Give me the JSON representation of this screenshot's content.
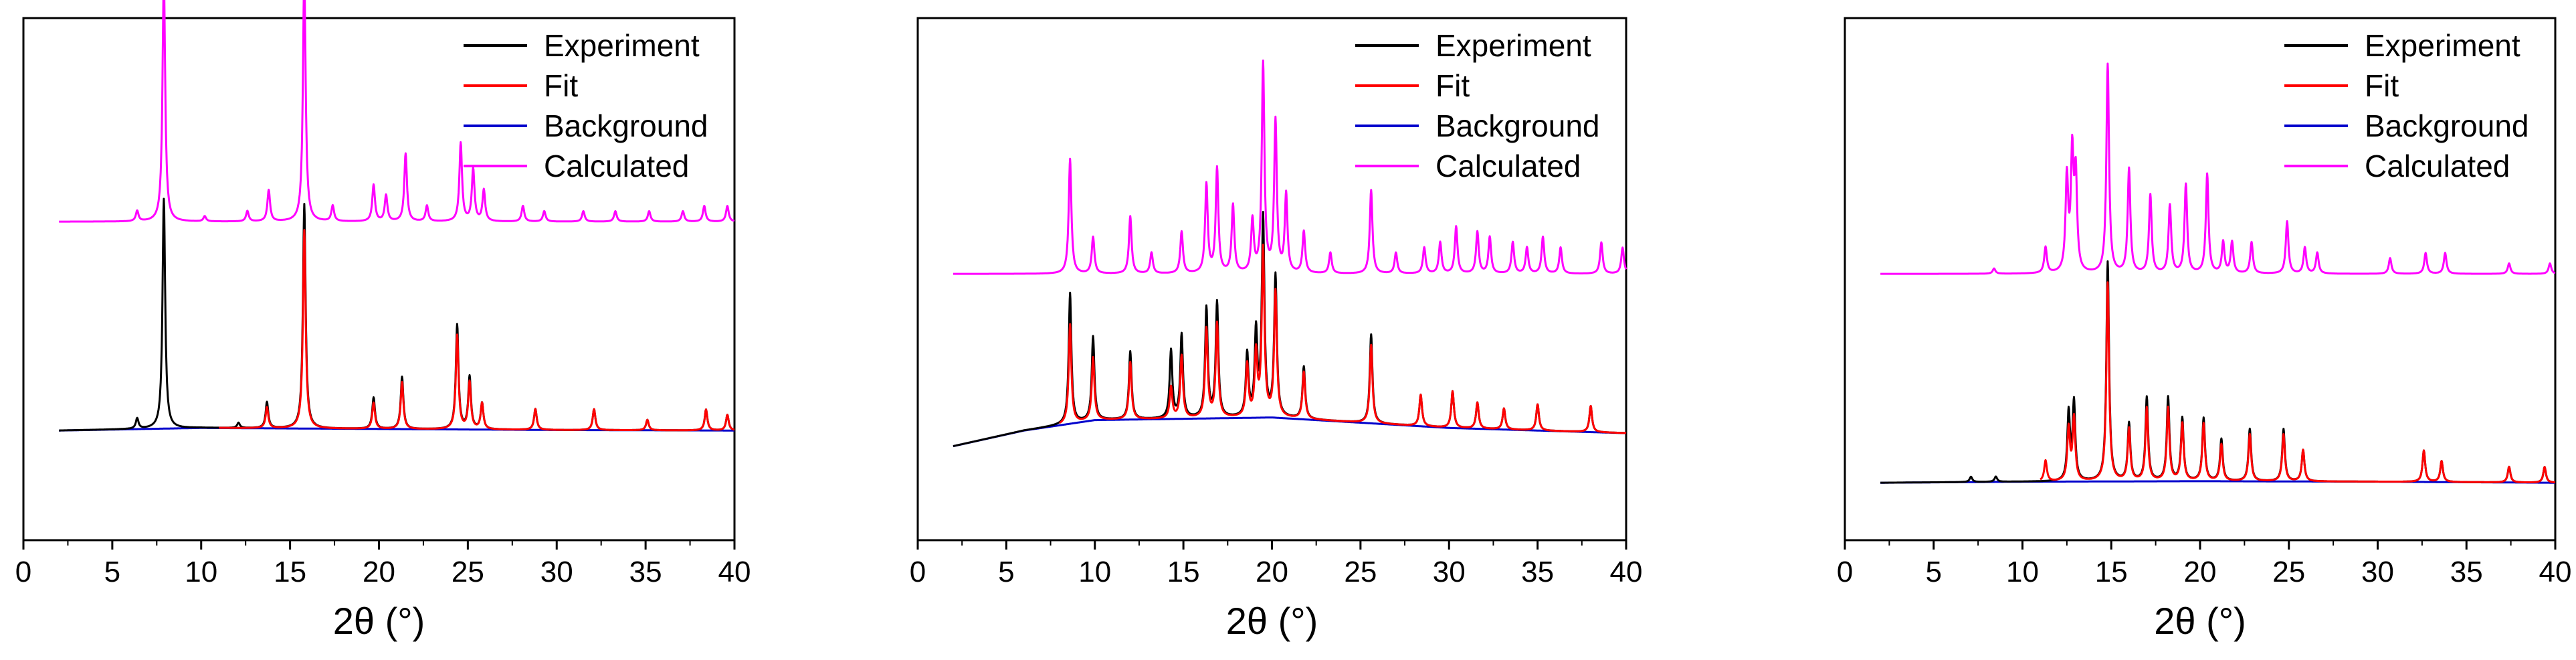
{
  "chart_data": [
    {
      "type": "line",
      "panel": "left",
      "xlabel": "2θ (°)",
      "ylabel": "",
      "xlim": [
        0,
        40
      ],
      "xticks": [
        0,
        5,
        10,
        15,
        20,
        25,
        30,
        35,
        40
      ],
      "yticks": [],
      "ylim": [
        0,
        1.0
      ],
      "legend": {
        "position": "top-right",
        "entries": [
          "Experiment",
          "Fit",
          "Background",
          "Calculated"
        ]
      },
      "series": [
        {
          "name": "Experiment",
          "color": "#000000",
          "baseline": 0.21,
          "x_start": 2.0,
          "bg": [
            [
              2,
              0.0
            ],
            [
              10,
              0.005
            ],
            [
              20,
              0.003
            ],
            [
              30,
              0.001
            ],
            [
              40,
              0.0
            ]
          ],
          "peaks": [
            [
              7.9,
              0.44
            ],
            [
              15.8,
              0.43
            ],
            [
              13.7,
              0.05
            ],
            [
              19.7,
              0.06
            ],
            [
              21.3,
              0.1
            ],
            [
              24.4,
              0.2
            ],
            [
              25.1,
              0.1
            ],
            [
              25.8,
              0.05
            ],
            [
              28.8,
              0.04
            ],
            [
              32.1,
              0.04
            ],
            [
              35.1,
              0.02
            ],
            [
              38.4,
              0.04
            ],
            [
              39.6,
              0.03
            ],
            [
              12.1,
              0.01
            ],
            [
              6.4,
              0.02
            ]
          ]
        },
        {
          "name": "Fit",
          "color": "#ff0000",
          "baseline": 0.21,
          "x_start": 11.0,
          "bg": [
            [
              2,
              0.0
            ],
            [
              10,
              0.005
            ],
            [
              20,
              0.003
            ],
            [
              30,
              0.001
            ],
            [
              40,
              0.0
            ]
          ],
          "peaks": [
            [
              7.9,
              0.39
            ],
            [
              15.8,
              0.38
            ],
            [
              13.7,
              0.04
            ],
            [
              19.7,
              0.05
            ],
            [
              21.3,
              0.09
            ],
            [
              24.4,
              0.18
            ],
            [
              25.1,
              0.09
            ],
            [
              25.8,
              0.05
            ],
            [
              28.8,
              0.04
            ],
            [
              32.1,
              0.04
            ],
            [
              35.1,
              0.02
            ],
            [
              38.4,
              0.04
            ],
            [
              39.6,
              0.03
            ]
          ]
        },
        {
          "name": "Background",
          "color": "#0000cc",
          "baseline": 0.21,
          "x_start": 2.0,
          "bg": [
            [
              2,
              0.0
            ],
            [
              10,
              0.005
            ],
            [
              20,
              0.003
            ],
            [
              30,
              0.001
            ],
            [
              40,
              0.0
            ]
          ],
          "peaks": []
        },
        {
          "name": "Calculated",
          "color": "#ff00ff",
          "baseline": 0.61,
          "x_start": 2.0,
          "bg": [
            [
              2,
              0
            ],
            [
              40,
              0
            ]
          ],
          "peaks": [
            [
              6.4,
              0.02
            ],
            [
              7.9,
              0.47
            ],
            [
              10.2,
              0.01
            ],
            [
              12.6,
              0.02
            ],
            [
              13.8,
              0.06
            ],
            [
              15.8,
              0.48
            ],
            [
              17.4,
              0.03
            ],
            [
              19.7,
              0.07
            ],
            [
              20.4,
              0.05
            ],
            [
              21.5,
              0.13
            ],
            [
              22.7,
              0.03
            ],
            [
              24.6,
              0.15
            ],
            [
              25.3,
              0.1
            ],
            [
              25.9,
              0.06
            ],
            [
              28.1,
              0.03
            ],
            [
              29.3,
              0.02
            ],
            [
              31.5,
              0.02
            ],
            [
              33.3,
              0.02
            ],
            [
              35.2,
              0.02
            ],
            [
              37.1,
              0.02
            ],
            [
              38.3,
              0.03
            ],
            [
              39.6,
              0.03
            ]
          ]
        }
      ]
    },
    {
      "type": "line",
      "panel": "middle",
      "xlabel": "2θ (°)",
      "ylabel": "",
      "xlim": [
        0,
        40
      ],
      "xticks": [
        0,
        5,
        10,
        15,
        20,
        25,
        30,
        35,
        40
      ],
      "yticks": [],
      "ylim": [
        0,
        1.0
      ],
      "legend": {
        "position": "top-right",
        "entries": [
          "Experiment",
          "Fit",
          "Background",
          "Calculated"
        ]
      },
      "series": [
        {
          "name": "Experiment",
          "color": "#000000",
          "baseline": 0.18,
          "x_start": 2.0,
          "bg": [
            [
              2,
              0.0
            ],
            [
              6,
              0.03
            ],
            [
              10,
              0.05
            ],
            [
              20,
              0.055
            ],
            [
              30,
              0.035
            ],
            [
              40,
              0.025
            ]
          ],
          "peaks": [
            [
              8.6,
              0.25
            ],
            [
              9.9,
              0.16
            ],
            [
              12.0,
              0.13
            ],
            [
              14.3,
              0.13
            ],
            [
              14.9,
              0.16
            ],
            [
              16.3,
              0.21
            ],
            [
              16.9,
              0.22
            ],
            [
              18.6,
              0.12
            ],
            [
              19.1,
              0.16
            ],
            [
              19.5,
              0.38
            ],
            [
              20.2,
              0.27
            ],
            [
              21.8,
              0.1
            ],
            [
              25.6,
              0.17
            ],
            [
              28.4,
              0.06
            ],
            [
              30.2,
              0.07
            ],
            [
              31.6,
              0.05
            ],
            [
              33.1,
              0.04
            ],
            [
              35.0,
              0.05
            ],
            [
              38.0,
              0.05
            ]
          ]
        },
        {
          "name": "Fit",
          "color": "#ff0000",
          "baseline": 0.18,
          "x_start": 8.0,
          "bg": [
            [
              2,
              0.0
            ],
            [
              6,
              0.03
            ],
            [
              10,
              0.05
            ],
            [
              20,
              0.055
            ],
            [
              30,
              0.035
            ],
            [
              40,
              0.025
            ]
          ],
          "peaks": [
            [
              8.6,
              0.19
            ],
            [
              9.9,
              0.12
            ],
            [
              12.0,
              0.11
            ],
            [
              14.3,
              0.06
            ],
            [
              14.9,
              0.12
            ],
            [
              16.3,
              0.17
            ],
            [
              16.9,
              0.18
            ],
            [
              18.6,
              0.1
            ],
            [
              19.1,
              0.12
            ],
            [
              19.5,
              0.32
            ],
            [
              20.2,
              0.24
            ],
            [
              21.8,
              0.09
            ],
            [
              25.6,
              0.15
            ],
            [
              28.4,
              0.06
            ],
            [
              30.2,
              0.07
            ],
            [
              31.6,
              0.05
            ],
            [
              33.1,
              0.04
            ],
            [
              35.0,
              0.05
            ],
            [
              38.0,
              0.05
            ]
          ]
        },
        {
          "name": "Background",
          "color": "#0000cc",
          "baseline": 0.18,
          "x_start": 2.0,
          "bg": [
            [
              2,
              0.0
            ],
            [
              6,
              0.03
            ],
            [
              10,
              0.05
            ],
            [
              20,
              0.055
            ],
            [
              30,
              0.035
            ],
            [
              40,
              0.025
            ]
          ],
          "peaks": []
        },
        {
          "name": "Calculated",
          "color": "#ff00ff",
          "baseline": 0.51,
          "x_start": 2.0,
          "bg": [
            [
              2,
              0
            ],
            [
              40,
              0
            ]
          ],
          "peaks": [
            [
              8.6,
              0.22
            ],
            [
              9.9,
              0.07
            ],
            [
              12.0,
              0.11
            ],
            [
              13.2,
              0.04
            ],
            [
              14.9,
              0.08
            ],
            [
              16.3,
              0.17
            ],
            [
              16.9,
              0.2
            ],
            [
              17.8,
              0.13
            ],
            [
              18.9,
              0.1
            ],
            [
              19.5,
              0.4
            ],
            [
              20.2,
              0.29
            ],
            [
              20.8,
              0.15
            ],
            [
              21.8,
              0.08
            ],
            [
              23.3,
              0.04
            ],
            [
              25.6,
              0.16
            ],
            [
              27.0,
              0.04
            ],
            [
              28.6,
              0.05
            ],
            [
              29.5,
              0.06
            ],
            [
              30.4,
              0.09
            ],
            [
              31.6,
              0.08
            ],
            [
              32.3,
              0.07
            ],
            [
              33.6,
              0.06
            ],
            [
              34.4,
              0.05
            ],
            [
              35.3,
              0.07
            ],
            [
              36.3,
              0.05
            ],
            [
              38.6,
              0.06
            ],
            [
              39.8,
              0.05
            ]
          ]
        }
      ]
    },
    {
      "type": "line",
      "panel": "right",
      "xlabel": "2θ (°)",
      "ylabel": "",
      "xlim": [
        0,
        40
      ],
      "xticks": [
        0,
        5,
        10,
        15,
        20,
        25,
        30,
        35,
        40
      ],
      "yticks": [],
      "ylim": [
        0,
        1.0
      ],
      "legend": {
        "position": "top-right",
        "entries": [
          "Experiment",
          "Fit",
          "Background",
          "Calculated"
        ]
      },
      "series": [
        {
          "name": "Experiment",
          "color": "#000000",
          "baseline": 0.11,
          "x_start": 2.0,
          "bg": [
            [
              2,
              0.0
            ],
            [
              10,
              0.002
            ],
            [
              20,
              0.003
            ],
            [
              30,
              0.002
            ],
            [
              40,
              0.0
            ]
          ],
          "peaks": [
            [
              7.1,
              0.01
            ],
            [
              8.5,
              0.01
            ],
            [
              12.6,
              0.13
            ],
            [
              12.9,
              0.15
            ],
            [
              14.8,
              0.42
            ],
            [
              16.0,
              0.11
            ],
            [
              17.0,
              0.16
            ],
            [
              18.2,
              0.16
            ],
            [
              19.0,
              0.12
            ],
            [
              20.2,
              0.12
            ],
            [
              21.2,
              0.08
            ],
            [
              22.8,
              0.1
            ],
            [
              24.7,
              0.1
            ],
            [
              25.8,
              0.06
            ],
            [
              32.6,
              0.06
            ],
            [
              33.6,
              0.04
            ],
            [
              37.4,
              0.03
            ],
            [
              39.4,
              0.03
            ]
          ]
        },
        {
          "name": "Fit",
          "color": "#ff0000",
          "baseline": 0.11,
          "x_start": 11.0,
          "bg": [
            [
              2,
              0.0
            ],
            [
              10,
              0.002
            ],
            [
              20,
              0.003
            ],
            [
              30,
              0.002
            ],
            [
              40,
              0.0
            ]
          ],
          "peaks": [
            [
              11.3,
              0.04
            ],
            [
              12.6,
              0.1
            ],
            [
              12.9,
              0.12
            ],
            [
              14.8,
              0.38
            ],
            [
              16.0,
              0.1
            ],
            [
              17.0,
              0.14
            ],
            [
              18.2,
              0.14
            ],
            [
              19.0,
              0.11
            ],
            [
              20.2,
              0.11
            ],
            [
              21.2,
              0.07
            ],
            [
              22.8,
              0.09
            ],
            [
              24.7,
              0.09
            ],
            [
              25.8,
              0.06
            ],
            [
              32.6,
              0.06
            ],
            [
              33.6,
              0.04
            ],
            [
              37.4,
              0.03
            ],
            [
              39.4,
              0.03
            ]
          ]
        },
        {
          "name": "Background",
          "color": "#0000cc",
          "baseline": 0.11,
          "x_start": 2.0,
          "bg": [
            [
              2,
              0.0
            ],
            [
              10,
              0.002
            ],
            [
              20,
              0.003
            ],
            [
              30,
              0.002
            ],
            [
              40,
              0.0
            ]
          ],
          "peaks": []
        },
        {
          "name": "Calculated",
          "color": "#ff00ff",
          "baseline": 0.51,
          "x_start": 2.0,
          "bg": [
            [
              2,
              0
            ],
            [
              40,
              0
            ]
          ],
          "peaks": [
            [
              8.4,
              0.01
            ],
            [
              11.3,
              0.05
            ],
            [
              12.5,
              0.18
            ],
            [
              12.8,
              0.22
            ],
            [
              13.0,
              0.18
            ],
            [
              14.8,
              0.4
            ],
            [
              16.0,
              0.2
            ],
            [
              17.2,
              0.15
            ],
            [
              18.3,
              0.13
            ],
            [
              19.2,
              0.17
            ],
            [
              20.4,
              0.19
            ],
            [
              21.3,
              0.06
            ],
            [
              21.8,
              0.06
            ],
            [
              22.9,
              0.06
            ],
            [
              24.9,
              0.1
            ],
            [
              25.9,
              0.05
            ],
            [
              26.6,
              0.04
            ],
            [
              30.7,
              0.03
            ],
            [
              32.7,
              0.04
            ],
            [
              33.8,
              0.04
            ],
            [
              37.4,
              0.02
            ],
            [
              39.7,
              0.02
            ]
          ]
        }
      ]
    }
  ]
}
